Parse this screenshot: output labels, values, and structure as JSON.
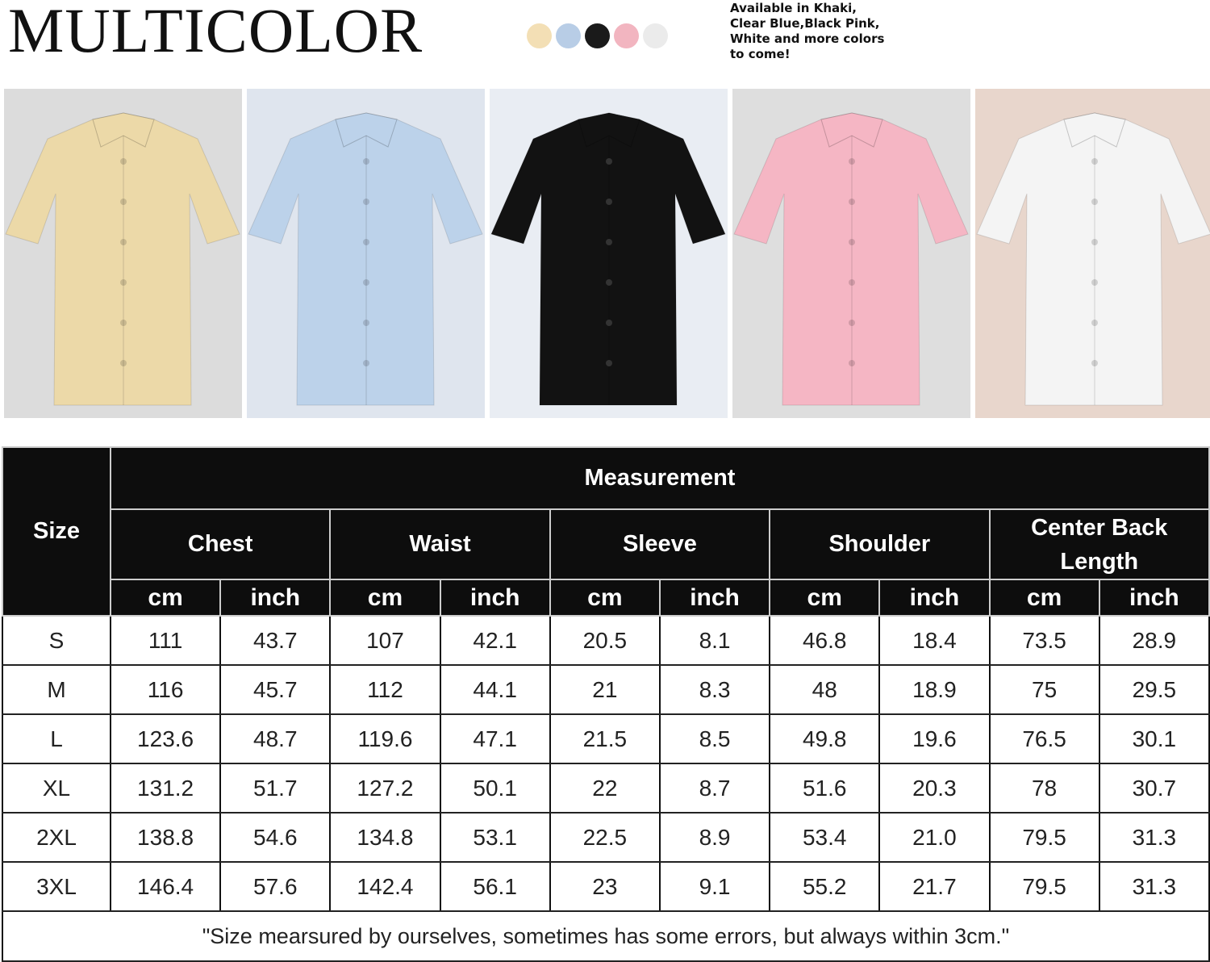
{
  "header": {
    "title": "MULTICOLOR",
    "availability": "Available in Khaki, Clear Blue,Black Pink, White and more colors to come!",
    "swatches": [
      {
        "name": "khaki",
        "color": "#f3dfb5"
      },
      {
        "name": "clear-blue",
        "color": "#b8cde6"
      },
      {
        "name": "black",
        "color": "#1a1a1a"
      },
      {
        "name": "pink",
        "color": "#f2b5c0"
      },
      {
        "name": "white",
        "color": "#ebebeb"
      }
    ]
  },
  "photos": [
    {
      "name": "khaki",
      "shirt": "#ecd9a8",
      "bg": "#dcdcdc"
    },
    {
      "name": "clear-blue",
      "shirt": "#bcd2ea",
      "bg": "#dfe5ee"
    },
    {
      "name": "black",
      "shirt": "#121212",
      "bg": "#e9edf3"
    },
    {
      "name": "pink",
      "shirt": "#f5b6c4",
      "bg": "#dedede"
    },
    {
      "name": "white",
      "shirt": "#f4f4f4",
      "bg": "#e8d6cc"
    }
  ],
  "table": {
    "size_label": "Size",
    "measurement_label": "Measurement",
    "groups": [
      "Chest",
      "Waist",
      "Sleeve",
      "Shoulder",
      "Center Back Length"
    ],
    "units": [
      "cm",
      "inch"
    ],
    "rows": [
      [
        "S",
        "111",
        "43.7",
        "107",
        "42.1",
        "20.5",
        "8.1",
        "46.8",
        "18.4",
        "73.5",
        "28.9"
      ],
      [
        "M",
        "116",
        "45.7",
        "112",
        "44.1",
        "21",
        "8.3",
        "48",
        "18.9",
        "75",
        "29.5"
      ],
      [
        "L",
        "123.6",
        "48.7",
        "119.6",
        "47.1",
        "21.5",
        "8.5",
        "49.8",
        "19.6",
        "76.5",
        "30.1"
      ],
      [
        "XL",
        "131.2",
        "51.7",
        "127.2",
        "50.1",
        "22",
        "8.7",
        "51.6",
        "20.3",
        "78",
        "30.7"
      ],
      [
        "2XL",
        "138.8",
        "54.6",
        "134.8",
        "53.1",
        "22.5",
        "8.9",
        "53.4",
        "21.0",
        "79.5",
        "31.3"
      ],
      [
        "3XL",
        "146.4",
        "57.6",
        "142.4",
        "56.1",
        "23",
        "9.1",
        "55.2",
        "21.7",
        "79.5",
        "31.3"
      ]
    ],
    "footnote": "\"Size mearsured by ourselves, sometimes has some errors, but always within 3cm.\""
  }
}
